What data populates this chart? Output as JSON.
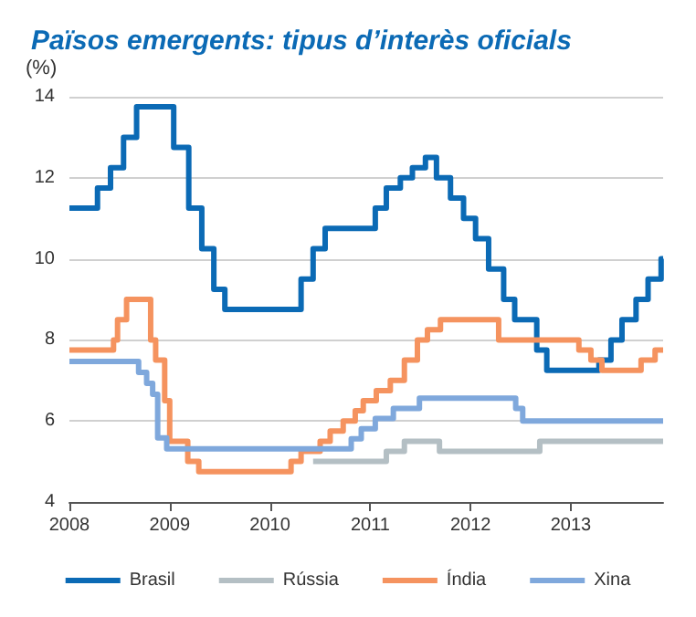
{
  "chart_data": {
    "type": "step",
    "title": "Països emergents: tipus d’interès oficials",
    "ylabel": "(%)",
    "xlim": [
      2008,
      2013.92
    ],
    "xticks": [
      2008,
      2009,
      2010,
      2011,
      2012,
      2013
    ],
    "ylim": [
      4,
      14
    ],
    "yticks": [
      4,
      6,
      8,
      10,
      12,
      14
    ],
    "grid": "y",
    "legend": "bottom",
    "marker": "none",
    "line_style": "solid",
    "series": [
      {
        "name": "Brasil",
        "color": "#0b6ab5",
        "x": [
          2008,
          2008.28,
          2008.41,
          2008.54,
          2008.67,
          2009.04,
          2009.19,
          2009.32,
          2009.44,
          2009.55,
          2010.31,
          2010.43,
          2010.55,
          2011.05,
          2011.16,
          2011.3,
          2011.42,
          2011.55,
          2011.66,
          2011.8,
          2011.93,
          2012.05,
          2012.18,
          2012.33,
          2012.44,
          2012.66,
          2012.76,
          2013.28,
          2013.4,
          2013.51,
          2013.65,
          2013.77,
          2013.9,
          2013.92
        ],
        "values": [
          11.25,
          11.75,
          12.25,
          13,
          13.75,
          12.75,
          11.25,
          10.25,
          9.25,
          8.75,
          9.5,
          10.25,
          10.75,
          11.25,
          11.75,
          12,
          12.25,
          12.5,
          12,
          11.5,
          11,
          10.5,
          9.75,
          9,
          8.5,
          7.75,
          7.25,
          7.5,
          8,
          8.5,
          9,
          9.5,
          10,
          10
        ]
      },
      {
        "name": "Rússia",
        "color": "#b4bfc4",
        "x": [
          2010.43,
          2011.16,
          2011.34,
          2011.69,
          2012.69,
          2013.92
        ],
        "values": [
          5,
          5.25,
          5.5,
          5.25,
          5.5,
          5.5
        ]
      },
      {
        "name": "Índia",
        "color": "#f5935f",
        "x": [
          2008,
          2008.44,
          2008.48,
          2008.57,
          2008.81,
          2008.86,
          2008.95,
          2009,
          2009.18,
          2009.29,
          2010.21,
          2010.31,
          2010.5,
          2010.6,
          2010.73,
          2010.85,
          2010.93,
          2011.06,
          2011.2,
          2011.34,
          2011.47,
          2011.57,
          2011.7,
          2012.28,
          2013.08,
          2013.2,
          2013.31,
          2013.7,
          2013.84,
          2013.92
        ],
        "values": [
          7.75,
          8,
          8.5,
          9,
          8,
          7.5,
          6.5,
          5.5,
          5,
          4.75,
          5,
          5.25,
          5.5,
          5.75,
          6,
          6.25,
          6.5,
          6.75,
          7,
          7.5,
          8,
          8.25,
          8.5,
          8,
          7.75,
          7.5,
          7.25,
          7.5,
          7.75,
          7.75
        ]
      },
      {
        "name": "Xina",
        "color": "#7fa8dc",
        "x": [
          2008,
          2008.69,
          2008.77,
          2008.83,
          2008.88,
          2008.97,
          2010.81,
          2010.91,
          2011.05,
          2011.23,
          2011.49,
          2012.45,
          2012.52,
          2013.92
        ],
        "values": [
          7.47,
          7.2,
          6.93,
          6.66,
          5.58,
          5.31,
          5.56,
          5.81,
          6.06,
          6.31,
          6.56,
          6.31,
          6,
          6
        ]
      }
    ]
  }
}
